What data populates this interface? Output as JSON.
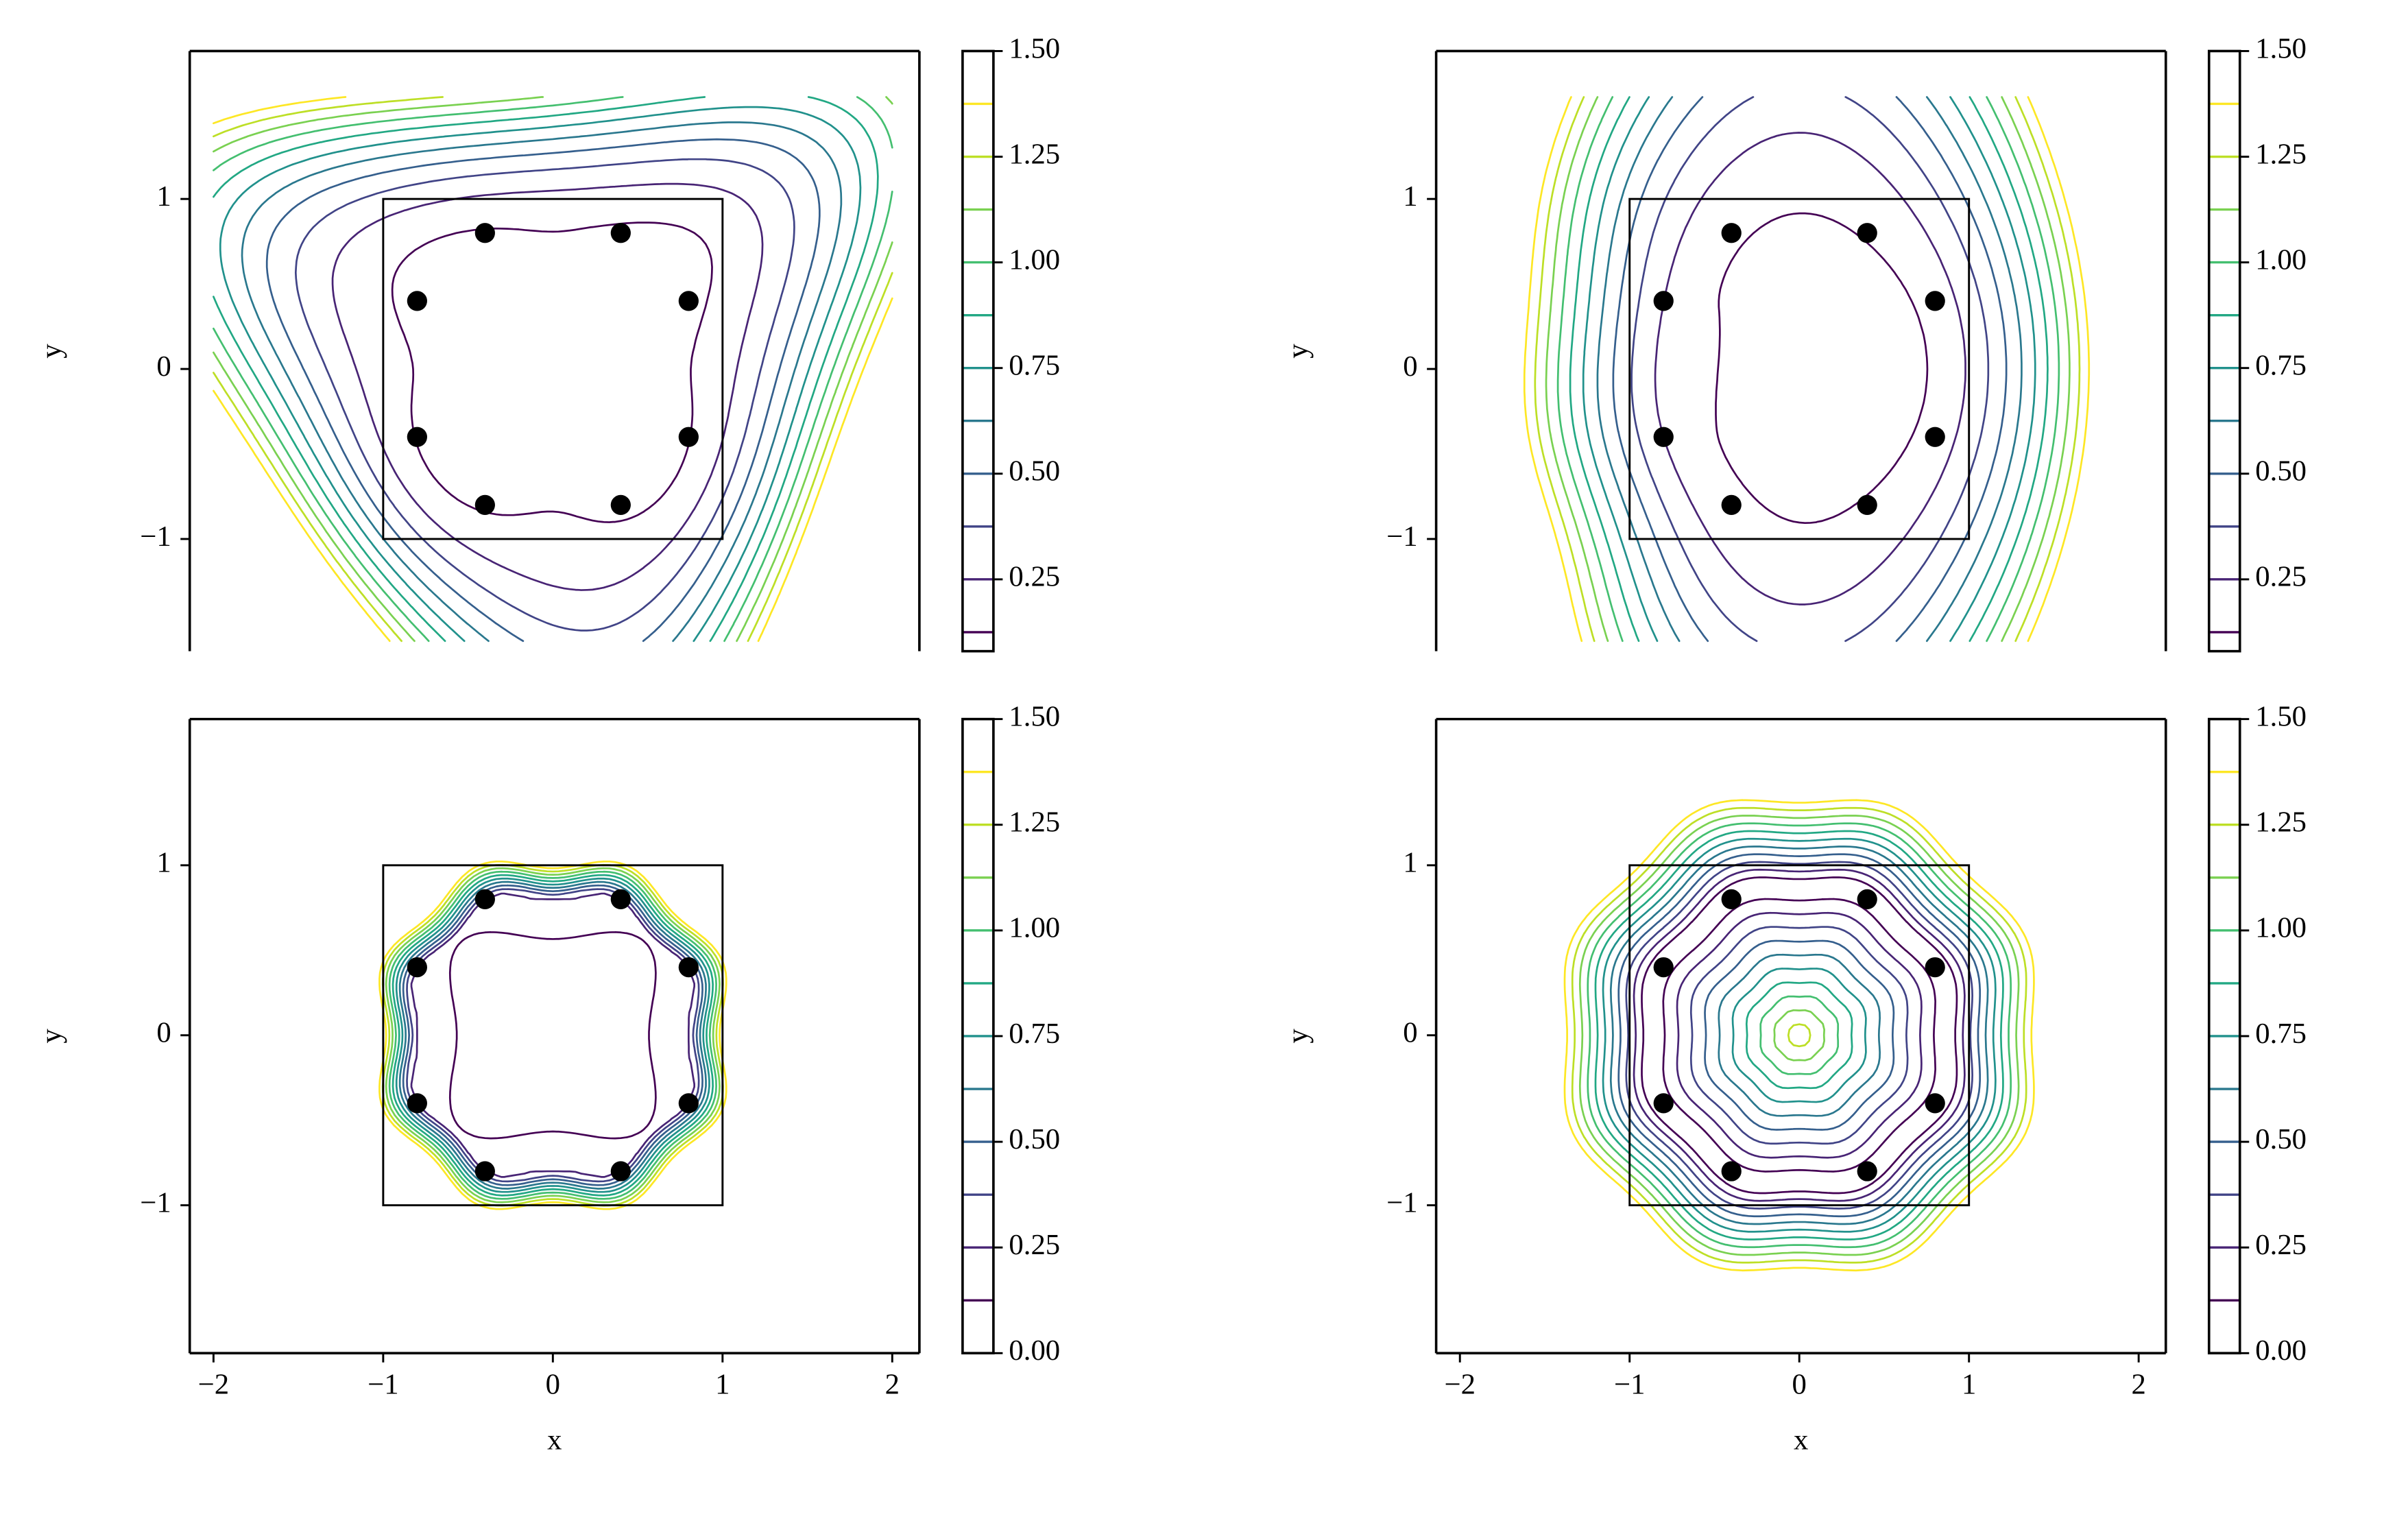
{
  "chart_data": [
    {
      "type": "contour",
      "ylabel": "y",
      "xlim": [
        -2.14,
        2.16
      ],
      "ylim": [
        -1.66,
        1.87
      ],
      "yticks": [
        {
          "value": -1,
          "label": "−1"
        },
        0,
        1
      ],
      "levels": [
        0.125,
        0.25,
        0.375,
        0.5,
        0.625,
        0.75,
        0.875,
        1,
        1.125,
        1.25,
        1.375
      ],
      "level_colors": [
        "#440154",
        "#482475",
        "#414487",
        "#355f8d",
        "#2a788e",
        "#21918c",
        "#22a884",
        "#44bf70",
        "#7ad151",
        "#bddf26",
        "#fde725"
      ],
      "clim": [
        0.08,
        1.5
      ],
      "cbar_ticks": [
        0.25,
        {
          "value": 0.5,
          "label": "0.50"
        },
        0.75,
        {
          "value": 1,
          "label": "1.00"
        },
        1.25,
        {
          "value": 1.5,
          "label": "1.50"
        }
      ],
      "points": {
        "x": [
          -0.4,
          0.4,
          -0.8,
          0.8,
          -0.8,
          0.8,
          -0.4,
          0.4
        ],
        "y": [
          0.8,
          0.8,
          0.4,
          0.4,
          -0.4,
          -0.4,
          -0.8,
          -0.8
        ],
        "color": "#000000"
      },
      "square": {
        "x": [
          -1,
          1
        ],
        "y": [
          -1,
          1
        ]
      }
    },
    {
      "type": "contour",
      "ylabel": "y",
      "xlim": [
        -2.14,
        2.16
      ],
      "ylim": [
        -1.66,
        1.87
      ],
      "yticks": [
        {
          "value": -1,
          "label": "−1"
        },
        0,
        1
      ],
      "levels": [
        0.125,
        0.25,
        0.375,
        0.5,
        0.625,
        0.75,
        0.875,
        1,
        1.125,
        1.25,
        1.375
      ],
      "level_colors": [
        "#440154",
        "#482475",
        "#414487",
        "#355f8d",
        "#2a788e",
        "#21918c",
        "#22a884",
        "#44bf70",
        "#7ad151",
        "#bddf26",
        "#fde725"
      ],
      "clim": [
        0.08,
        1.5
      ],
      "cbar_ticks": [
        0.25,
        {
          "value": 0.5,
          "label": "0.50"
        },
        0.75,
        {
          "value": 1,
          "label": "1.00"
        },
        1.25,
        {
          "value": 1.5,
          "label": "1.50"
        }
      ],
      "points": {
        "x": [
          -0.4,
          0.4,
          -0.8,
          0.8,
          -0.8,
          0.8,
          -0.4,
          0.4
        ],
        "y": [
          0.8,
          0.8,
          0.4,
          0.4,
          -0.4,
          -0.4,
          -0.8,
          -0.8
        ],
        "color": "#000000"
      },
      "square": {
        "x": [
          -1,
          1
        ],
        "y": [
          -1,
          1
        ]
      }
    },
    {
      "type": "contour",
      "xlabel": "x",
      "ylabel": "y",
      "xlim": [
        -2.14,
        2.16
      ],
      "ylim": [
        -1.87,
        1.86
      ],
      "xticks": [
        {
          "value": -2,
          "label": "−2"
        },
        {
          "value": -1,
          "label": "−1"
        },
        0,
        1,
        2
      ],
      "yticks": [
        {
          "value": -1,
          "label": "−1"
        },
        0,
        1
      ],
      "levels": [
        0.125,
        0.25,
        0.375,
        0.5,
        0.625,
        0.75,
        0.875,
        1,
        1.125,
        1.25,
        1.375
      ],
      "level_colors": [
        "#440154",
        "#482475",
        "#414487",
        "#355f8d",
        "#2a788e",
        "#21918c",
        "#22a884",
        "#44bf70",
        "#7ad151",
        "#bddf26",
        "#fde725"
      ],
      "clim": [
        0,
        1.5
      ],
      "cbar_ticks": [
        {
          "value": 0,
          "label": "0.00"
        },
        0.25,
        {
          "value": 0.5,
          "label": "0.50"
        },
        0.75,
        {
          "value": 1,
          "label": "1.00"
        },
        1.25,
        {
          "value": 1.5,
          "label": "1.50"
        }
      ],
      "points": {
        "x": [
          -0.4,
          0.4,
          -0.8,
          0.8,
          -0.8,
          0.8,
          -0.4,
          0.4
        ],
        "y": [
          0.8,
          0.8,
          0.4,
          0.4,
          -0.4,
          -0.4,
          -0.8,
          -0.8
        ],
        "color": "#000000"
      },
      "square": {
        "x": [
          -1,
          1
        ],
        "y": [
          -1,
          1
        ]
      }
    },
    {
      "type": "contour",
      "xlabel": "x",
      "ylabel": "y",
      "xlim": [
        -2.14,
        2.16
      ],
      "ylim": [
        -1.87,
        1.86
      ],
      "xticks": [
        {
          "value": -2,
          "label": "−2"
        },
        {
          "value": -1,
          "label": "−1"
        },
        0,
        1,
        2
      ],
      "yticks": [
        {
          "value": -1,
          "label": "−1"
        },
        0,
        1
      ],
      "levels": [
        0.125,
        0.25,
        0.375,
        0.5,
        0.625,
        0.75,
        0.875,
        1,
        1.125,
        1.25,
        1.375
      ],
      "level_colors": [
        "#440154",
        "#482475",
        "#414487",
        "#355f8d",
        "#2a788e",
        "#21918c",
        "#22a884",
        "#44bf70",
        "#7ad151",
        "#bddf26",
        "#fde725"
      ],
      "clim": [
        0,
        1.5
      ],
      "cbar_ticks": [
        {
          "value": 0,
          "label": "0.00"
        },
        0.25,
        {
          "value": 0.5,
          "label": "0.50"
        },
        0.75,
        {
          "value": 1,
          "label": "1.00"
        },
        1.25,
        {
          "value": 1.5,
          "label": "1.50"
        }
      ],
      "points": {
        "x": [
          -0.4,
          0.4,
          -0.8,
          0.8,
          -0.8,
          0.8,
          -0.4,
          0.4
        ],
        "y": [
          0.8,
          0.8,
          0.4,
          0.4,
          -0.4,
          -0.4,
          -0.8,
          -0.8
        ],
        "color": "#000000"
      },
      "square": {
        "x": [
          -1,
          1
        ],
        "y": [
          -1,
          1
        ]
      }
    }
  ]
}
